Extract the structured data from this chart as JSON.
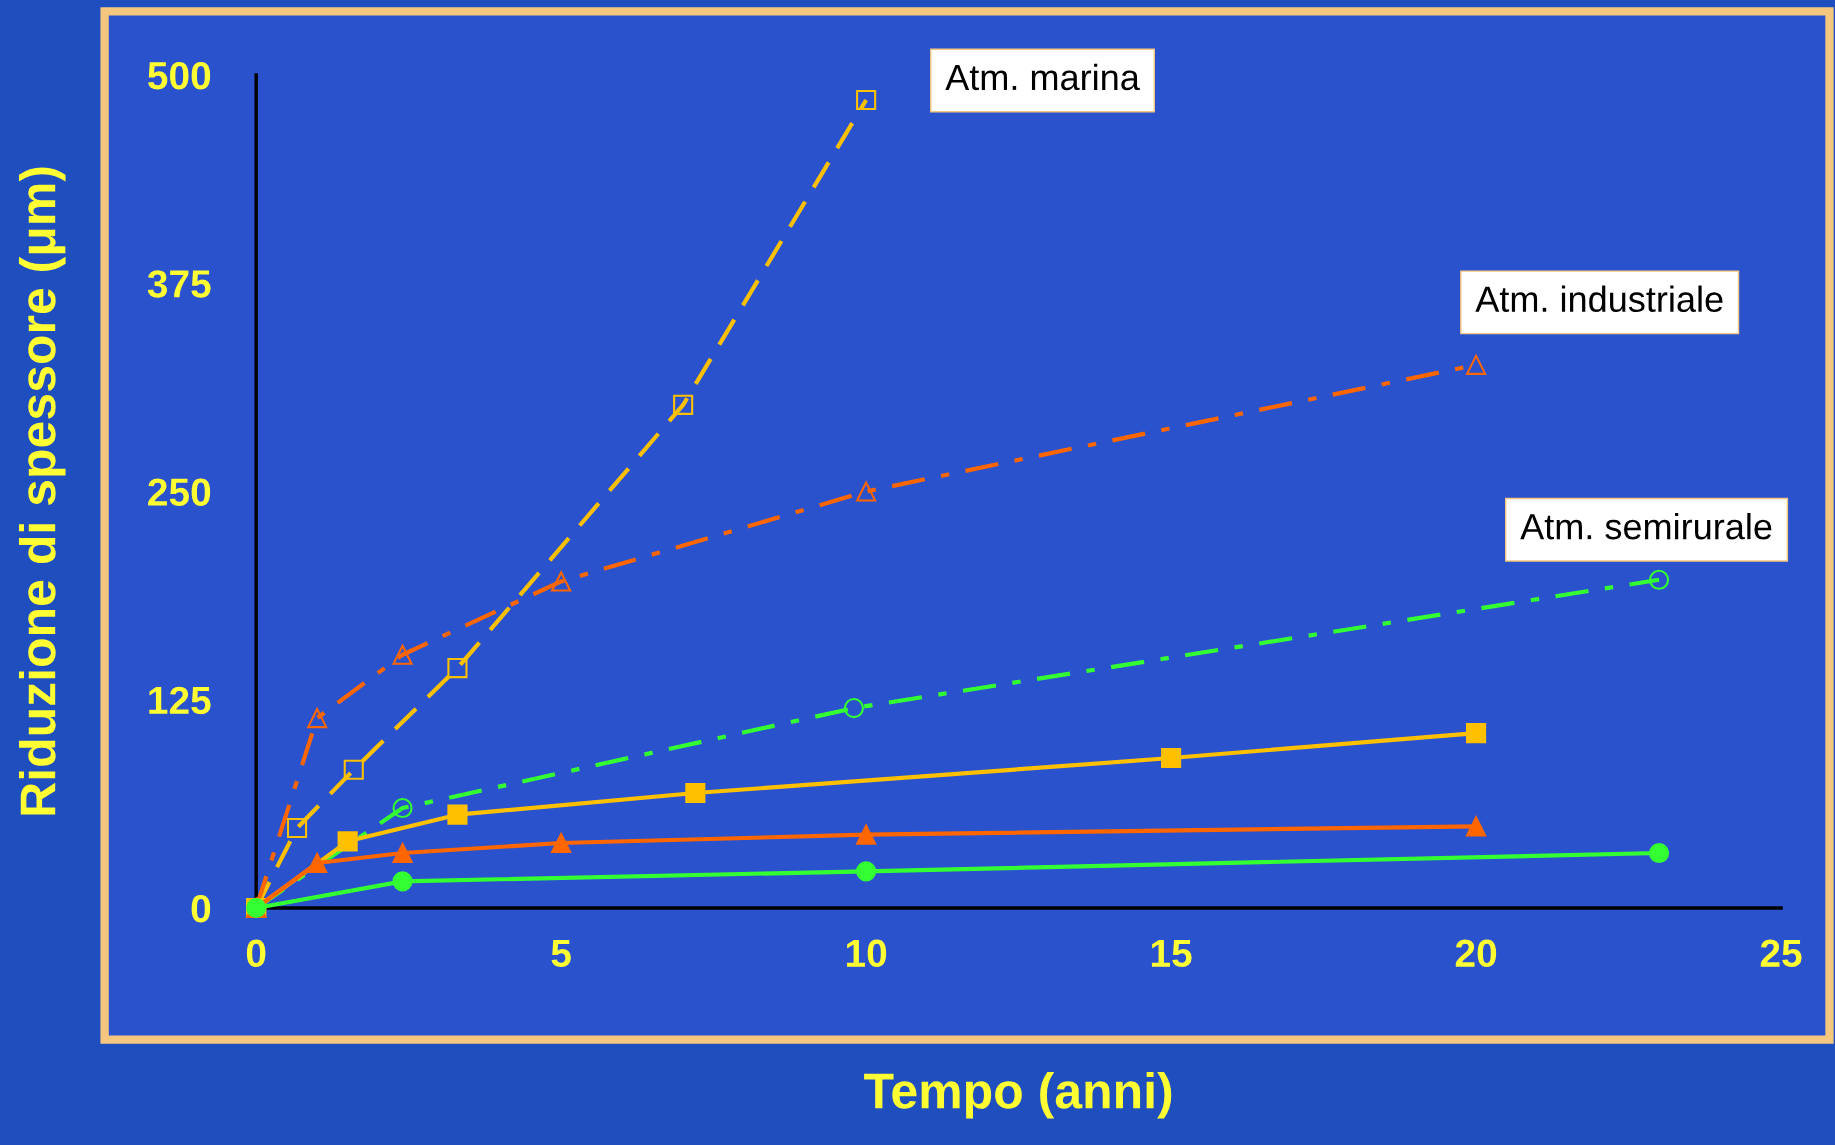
{
  "chart_data": {
    "type": "line",
    "xlabel": "Tempo (anni)",
    "ylabel": "Riduzione di spessore (μm)",
    "xlim": [
      0,
      25
    ],
    "ylim": [
      0,
      500
    ],
    "xticks": [
      0,
      5,
      10,
      15,
      20,
      25
    ],
    "yticks": [
      0,
      125,
      250,
      375,
      500
    ],
    "grid": false,
    "legend": false,
    "series": [
      {
        "name": "Atm. marina",
        "color": "#ffc000",
        "line_style": "dashed",
        "marker": "square",
        "x": [
          0,
          0.67,
          1.6,
          3.3,
          7,
          10
        ],
        "values": [
          0,
          48,
          83,
          144,
          302,
          485
        ]
      },
      {
        "name": "Atm. industriale",
        "color": "#ff6600",
        "line_style": "dashdot",
        "marker": "triangle",
        "x": [
          0,
          1,
          2.4,
          5,
          10,
          20
        ],
        "values": [
          0,
          114,
          152,
          196,
          250,
          326
        ]
      },
      {
        "name": "Atm. semirurale",
        "color": "#33ff33",
        "line_style": "dashdot",
        "marker": "circle",
        "x": [
          0,
          2.4,
          9.8,
          23
        ],
        "values": [
          0,
          60,
          120,
          197
        ]
      },
      {
        "color": "#ffc000",
        "line_style": "solid",
        "marker": "square",
        "x": [
          0,
          1.5,
          3.3,
          7.2,
          15,
          20
        ],
        "values": [
          0,
          40,
          56,
          69,
          90,
          105
        ]
      },
      {
        "color": "#ff6600",
        "line_style": "solid",
        "marker": "triangle",
        "x": [
          0,
          1,
          2.4,
          5,
          10,
          20
        ],
        "values": [
          0,
          27,
          33,
          39,
          44,
          49
        ]
      },
      {
        "color": "#33ff33",
        "line_style": "solid",
        "marker": "circle",
        "x": [
          0,
          2.4,
          10,
          23
        ],
        "values": [
          0,
          16,
          22,
          33
        ]
      }
    ]
  }
}
